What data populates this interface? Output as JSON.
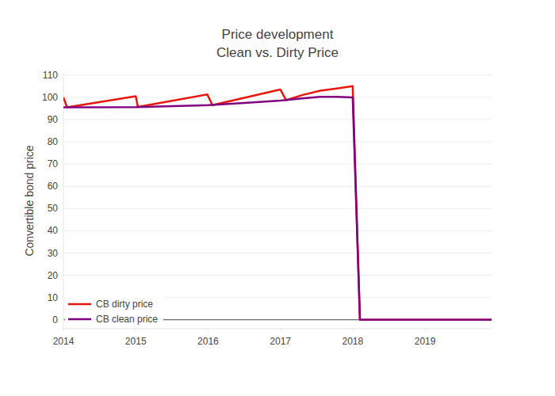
{
  "chart_data": {
    "type": "line",
    "title": "Price development",
    "subtitle": "Clean vs. Dirty Price",
    "y_label": "Convertible bond price",
    "xlim": [
      2014,
      2019.92
    ],
    "xticks": [
      2014,
      2015,
      2016,
      2017,
      2018,
      2019
    ],
    "ylim": [
      -4,
      111
    ],
    "yticks": [
      0,
      10,
      20,
      30,
      40,
      50,
      60,
      70,
      80,
      90,
      100,
      110
    ],
    "grid": true,
    "legend": "lower left",
    "series": [
      {
        "name": "CB dirty price",
        "color": "#e8170d",
        "x": [
          2014.0,
          2014.05,
          2015.0,
          2015.03,
          2015.99,
          2016.06,
          2017.0,
          2017.08,
          2017.3,
          2017.55,
          2017.78,
          2018.0,
          2018.1,
          2019.92
        ],
        "values": [
          100,
          95.5,
          100.5,
          95.7,
          101.3,
          96.5,
          103.5,
          98.7,
          101,
          103,
          104,
          105,
          0,
          0
        ]
      },
      {
        "name": "CB clean price",
        "color": "#800080",
        "x": [
          2014.0,
          2015.0,
          2016.0,
          2016.5,
          2017.0,
          2017.3,
          2017.55,
          2017.78,
          2018.0,
          2018.1,
          2019.92
        ],
        "values": [
          95.5,
          95.6,
          96.5,
          97.5,
          98.5,
          99.5,
          100.2,
          100.2,
          100,
          0,
          0
        ]
      }
    ]
  }
}
